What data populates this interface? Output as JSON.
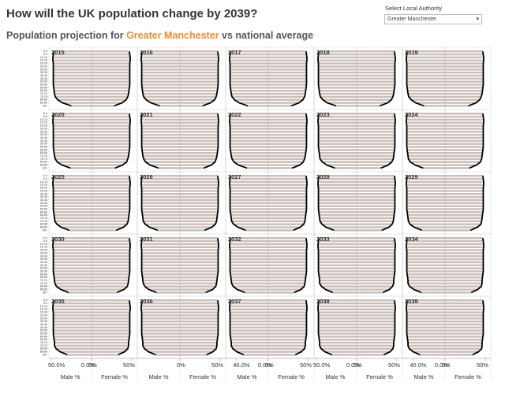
{
  "title": "How will the UK population change by 2039?",
  "subtitle": {
    "prefix": "Population projection for",
    "highlight": "Greater Manchester",
    "suffix": "vs national average"
  },
  "filter": {
    "label": "Select Local Authority",
    "value": "Greater Manchester"
  },
  "chart_data": {
    "type": "pyramid-grid",
    "bar_color": "#cbbfb9",
    "line_color": "#000000",
    "xlim": [
      0,
      50
    ],
    "age_groups": [
      "0-4",
      "5-9",
      "10-14",
      "15-19",
      "20-24",
      "25-29",
      "30-34",
      "35-39",
      "40-44",
      "45-49",
      "50-54",
      "55-59",
      "60-64",
      "65-69",
      "70-74",
      "75-79",
      "80-84",
      "85-89",
      "90+"
    ],
    "male_axis_title": "Male %",
    "female_axis_title": "Female %",
    "axes": [
      {
        "male_ticks": [
          {
            "value": 50,
            "label": "50.0%"
          },
          {
            "value": 0,
            "label": "0.0%"
          }
        ],
        "female_ticks": [
          {
            "value": 0,
            "label": "0%"
          },
          {
            "value": 50,
            "label": "50%"
          }
        ]
      },
      {
        "male_ticks": [],
        "female_ticks": [
          {
            "value": 0,
            "label": "0%"
          },
          {
            "value": 50,
            "label": "50%"
          }
        ]
      },
      {
        "male_ticks": [
          {
            "value": 40,
            "label": "40.0%"
          },
          {
            "value": 0,
            "label": "0.0%"
          }
        ],
        "female_ticks": [
          {
            "value": 0,
            "label": "0%"
          },
          {
            "value": 50,
            "label": "50%"
          }
        ]
      },
      {
        "male_ticks": [
          {
            "value": 50,
            "label": "50.0%"
          },
          {
            "value": 0,
            "label": "0.0%"
          }
        ],
        "female_ticks": [
          {
            "value": 0,
            "label": "0%"
          },
          {
            "value": 50,
            "label": "50%"
          }
        ]
      },
      {
        "male_ticks": [
          {
            "value": 40,
            "label": "40.0%"
          },
          {
            "value": 0,
            "label": "0.0%"
          }
        ],
        "female_ticks": [
          {
            "value": 0,
            "label": "0%"
          },
          {
            "value": 50,
            "label": "50%"
          }
        ]
      }
    ],
    "panels": [
      {
        "year": "2015",
        "male": [
          47,
          47.5,
          48,
          48,
          47.5,
          47.5,
          47.5,
          47.5,
          47.5,
          47.5,
          47.5,
          47.5,
          47,
          46.5,
          46,
          45,
          42,
          36,
          25
        ],
        "female": [
          47,
          47.5,
          48,
          48,
          47.5,
          47.5,
          47.5,
          47.5,
          47.5,
          47.5,
          47.5,
          47.5,
          47,
          46.5,
          46,
          45,
          43,
          38,
          28
        ]
      },
      {
        "year": "2016",
        "male": [
          47,
          47.5,
          48,
          48,
          47.5,
          47.5,
          47.5,
          47.5,
          47.5,
          47.5,
          47.5,
          47.5,
          47,
          46.5,
          46,
          45,
          42,
          36,
          25
        ],
        "female": [
          47,
          47.5,
          48,
          48,
          47.5,
          47.5,
          47.5,
          47.5,
          47.5,
          47.5,
          47.5,
          47.5,
          47,
          46.5,
          46,
          45,
          43,
          38,
          28
        ]
      },
      {
        "year": "2017",
        "male": [
          47,
          47.5,
          48,
          48,
          47.5,
          47.5,
          47.5,
          47.5,
          47.5,
          47.5,
          47.5,
          47.5,
          47,
          46.5,
          46,
          45,
          42,
          36,
          25.5
        ],
        "female": [
          47,
          47.5,
          48,
          48,
          47.5,
          47.5,
          47.5,
          47.5,
          47.5,
          47.5,
          47.5,
          47.5,
          47,
          46.5,
          46,
          45,
          43,
          38,
          28.5
        ]
      },
      {
        "year": "2018",
        "male": [
          47,
          47.5,
          48,
          48,
          47.5,
          47.5,
          47.5,
          47.5,
          47.5,
          47.5,
          47.5,
          47.5,
          47,
          46.5,
          46,
          45,
          42,
          36.5,
          25.5
        ],
        "female": [
          47,
          47.5,
          48,
          48,
          47.5,
          47.5,
          47.5,
          47.5,
          47.5,
          47.5,
          47.5,
          47.5,
          47,
          46.5,
          46,
          45,
          43,
          38.5,
          28.5
        ]
      },
      {
        "year": "2019",
        "male": [
          47,
          47.5,
          48,
          48,
          47.5,
          47.5,
          47.5,
          47.5,
          47.5,
          47.5,
          47.5,
          47.5,
          47,
          46.5,
          46,
          45,
          42,
          36.5,
          26
        ],
        "female": [
          47,
          47.5,
          48,
          48,
          47.5,
          47.5,
          47.5,
          47.5,
          47.5,
          47.5,
          47.5,
          47.5,
          47,
          46.5,
          46,
          45,
          43,
          38.5,
          29
        ]
      },
      {
        "year": "2020",
        "male": [
          47,
          47.5,
          48,
          48,
          47.5,
          47.5,
          47.5,
          47.5,
          47.5,
          47.5,
          47.5,
          47.5,
          47,
          46.5,
          46,
          45,
          42.5,
          36.5,
          26
        ],
        "female": [
          47,
          47.5,
          48,
          48,
          47.5,
          47.5,
          47.5,
          47.5,
          47.5,
          47.5,
          47.5,
          47.5,
          47,
          46.5,
          46,
          45,
          43.5,
          38.5,
          29
        ]
      },
      {
        "year": "2021",
        "male": [
          47,
          47.5,
          48,
          48,
          47.5,
          47.5,
          47.5,
          47.5,
          47.5,
          47.5,
          47.5,
          47.5,
          47,
          46.5,
          46,
          45,
          42.5,
          37,
          26.5
        ],
        "female": [
          47,
          47.5,
          48,
          48,
          47.5,
          47.5,
          47.5,
          47.5,
          47.5,
          47.5,
          47.5,
          47.5,
          47,
          46.5,
          46,
          45,
          43.5,
          39,
          29.5
        ]
      },
      {
        "year": "2022",
        "male": [
          47,
          47.5,
          48,
          48,
          47.5,
          47.5,
          47.5,
          47.5,
          47.5,
          47.5,
          47.5,
          47.5,
          47,
          46.5,
          46,
          45,
          42.5,
          37,
          26.5
        ],
        "female": [
          47,
          47.5,
          48,
          48,
          47.5,
          47.5,
          47.5,
          47.5,
          47.5,
          47.5,
          47.5,
          47.5,
          47,
          46.5,
          46,
          45,
          43.5,
          39,
          29.5
        ]
      },
      {
        "year": "2023",
        "male": [
          47,
          47.5,
          48,
          48,
          47.5,
          47.5,
          47.5,
          47.5,
          47.5,
          47.5,
          47.5,
          47.5,
          47,
          46.5,
          46,
          45.5,
          42.5,
          37,
          27
        ],
        "female": [
          47,
          47.5,
          48,
          48,
          47.5,
          47.5,
          47.5,
          47.5,
          47.5,
          47.5,
          47.5,
          47.5,
          47,
          46.5,
          46,
          45.5,
          43.5,
          39,
          30
        ]
      },
      {
        "year": "2024",
        "male": [
          47,
          47.5,
          48,
          48,
          47.5,
          47.5,
          47.5,
          47.5,
          47.5,
          47.5,
          47.5,
          47.5,
          47,
          46.5,
          46,
          45.5,
          43,
          37,
          27
        ],
        "female": [
          47,
          47.5,
          48,
          48,
          47.5,
          47.5,
          47.5,
          47.5,
          47.5,
          47.5,
          47.5,
          47.5,
          47,
          46.5,
          46,
          45.5,
          44,
          39,
          30
        ]
      },
      {
        "year": "2025",
        "male": [
          47,
          47.5,
          48,
          48,
          47.5,
          47.5,
          47.5,
          47.5,
          47.5,
          47.5,
          47.5,
          47.5,
          47,
          46.5,
          46,
          45.5,
          43,
          37.5,
          27.5
        ],
        "female": [
          47,
          47.5,
          48,
          48,
          47.5,
          47.5,
          47.5,
          47.5,
          47.5,
          47.5,
          47.5,
          47.5,
          47,
          46.5,
          46,
          45.5,
          44,
          39.5,
          30.5
        ]
      },
      {
        "year": "2026",
        "male": [
          47,
          47.5,
          48,
          48,
          47.5,
          47.5,
          47.5,
          47.5,
          47.5,
          47.5,
          47.5,
          47.5,
          47,
          46.5,
          46,
          45.5,
          43,
          37.5,
          27.5
        ],
        "female": [
          47,
          47.5,
          48,
          48,
          47.5,
          47.5,
          47.5,
          47.5,
          47.5,
          47.5,
          47.5,
          47.5,
          47,
          46.5,
          46,
          45.5,
          44,
          39.5,
          30.5
        ]
      },
      {
        "year": "2027",
        "male": [
          47,
          47.5,
          48,
          48,
          47.5,
          47.5,
          47.5,
          47.5,
          47.5,
          47.5,
          47.5,
          47.5,
          47,
          46.5,
          46,
          45.5,
          43,
          37.5,
          28
        ],
        "female": [
          47,
          47.5,
          48,
          48,
          47.5,
          47.5,
          47.5,
          47.5,
          47.5,
          47.5,
          47.5,
          47.5,
          47,
          46.5,
          46,
          45.5,
          44,
          39.5,
          31
        ]
      },
      {
        "year": "2028",
        "male": [
          47,
          47.5,
          48,
          48,
          47.5,
          47.5,
          47.5,
          47.5,
          47.5,
          47.5,
          47.5,
          47.5,
          47,
          46.5,
          46,
          45.5,
          43,
          38,
          28
        ],
        "female": [
          47,
          47.5,
          48,
          48,
          47.5,
          47.5,
          47.5,
          47.5,
          47.5,
          47.5,
          47.5,
          47.5,
          47,
          46.5,
          46,
          45.5,
          44,
          40,
          31
        ]
      },
      {
        "year": "2029",
        "male": [
          47,
          47.5,
          48,
          48,
          47.5,
          47.5,
          47.5,
          47.5,
          47.5,
          47.5,
          47.5,
          47.5,
          47,
          46.5,
          46,
          45.5,
          43.5,
          38,
          28.5
        ],
        "female": [
          47,
          47.5,
          48,
          48,
          47.5,
          47.5,
          47.5,
          47.5,
          47.5,
          47.5,
          47.5,
          47.5,
          47,
          46.5,
          46,
          45.5,
          44.5,
          40,
          31.5
        ]
      },
      {
        "year": "2030",
        "male": [
          47,
          47.5,
          48,
          48,
          47.5,
          47.5,
          47.5,
          47.5,
          47.5,
          47.5,
          47.5,
          47.5,
          47,
          46.5,
          46,
          45.5,
          43.5,
          38,
          28.5
        ],
        "female": [
          47,
          47.5,
          48,
          48,
          47.5,
          47.5,
          47.5,
          47.5,
          47.5,
          47.5,
          47.5,
          47.5,
          47,
          46.5,
          46,
          45.5,
          44.5,
          40,
          31.5
        ]
      },
      {
        "year": "2031",
        "male": [
          47,
          47.5,
          48,
          48,
          47.5,
          47.5,
          47.5,
          47.5,
          47.5,
          47.5,
          47.5,
          47.5,
          47,
          46.5,
          46,
          45.5,
          43.5,
          38.5,
          29
        ],
        "female": [
          47,
          47.5,
          48,
          48,
          47.5,
          47.5,
          47.5,
          47.5,
          47.5,
          47.5,
          47.5,
          47.5,
          47,
          46.5,
          46,
          45.5,
          44.5,
          40.5,
          32
        ]
      },
      {
        "year": "2032",
        "male": [
          47,
          47.5,
          48,
          48,
          47.5,
          47.5,
          47.5,
          47.5,
          47.5,
          47.5,
          47.5,
          47.5,
          47,
          46.5,
          46,
          45.5,
          43.5,
          38.5,
          29
        ],
        "female": [
          47,
          47.5,
          48,
          48,
          47.5,
          47.5,
          47.5,
          47.5,
          47.5,
          47.5,
          47.5,
          47.5,
          47,
          46.5,
          46,
          45.5,
          44.5,
          40.5,
          32
        ]
      },
      {
        "year": "2033",
        "male": [
          47,
          47.5,
          48,
          48,
          47.5,
          47.5,
          47.5,
          47.5,
          47.5,
          47.5,
          47.5,
          47.5,
          47,
          46.5,
          46,
          46,
          43.5,
          38.5,
          29.5
        ],
        "female": [
          47,
          47.5,
          48,
          48,
          47.5,
          47.5,
          47.5,
          47.5,
          47.5,
          47.5,
          47.5,
          47.5,
          47,
          46.5,
          46,
          46,
          44.5,
          40.5,
          32.5
        ]
      },
      {
        "year": "2034",
        "male": [
          47,
          47.5,
          48,
          48,
          47.5,
          47.5,
          47.5,
          47.5,
          47.5,
          47.5,
          47.5,
          47.5,
          47,
          46.5,
          46,
          46,
          44,
          38.5,
          29.5
        ],
        "female": [
          47,
          47.5,
          48,
          48,
          47.5,
          47.5,
          47.5,
          47.5,
          47.5,
          47.5,
          47.5,
          47.5,
          47,
          46.5,
          46,
          46,
          45,
          40.5,
          32.5
        ]
      },
      {
        "year": "2035",
        "male": [
          47,
          47.5,
          48,
          48,
          47.5,
          47.5,
          47.5,
          47.5,
          47.5,
          47.5,
          47.5,
          47.5,
          47,
          46.5,
          46,
          46,
          44,
          39,
          30
        ],
        "female": [
          47,
          47.5,
          48,
          48,
          47.5,
          47.5,
          47.5,
          47.5,
          47.5,
          47.5,
          47.5,
          47.5,
          47,
          46.5,
          46,
          46,
          45,
          41,
          33
        ]
      },
      {
        "year": "2036",
        "male": [
          47,
          47.5,
          48,
          48,
          47.5,
          47.5,
          47.5,
          47.5,
          47.5,
          47.5,
          47.5,
          47.5,
          47,
          46.5,
          46,
          46,
          44,
          39,
          30
        ],
        "female": [
          47,
          47.5,
          48,
          48,
          47.5,
          47.5,
          47.5,
          47.5,
          47.5,
          47.5,
          47.5,
          47.5,
          47,
          46.5,
          46,
          46,
          45,
          41,
          33
        ]
      },
      {
        "year": "2037",
        "male": [
          47,
          47.5,
          48,
          48,
          47.5,
          47.5,
          47.5,
          47.5,
          47.5,
          47.5,
          47.5,
          47.5,
          47,
          46.5,
          46,
          46,
          44,
          39,
          30.5
        ],
        "female": [
          47,
          47.5,
          48,
          48,
          47.5,
          47.5,
          47.5,
          47.5,
          47.5,
          47.5,
          47.5,
          47.5,
          47,
          46.5,
          46,
          46,
          45,
          41,
          33.5
        ]
      },
      {
        "year": "2038",
        "male": [
          47,
          47.5,
          48,
          48,
          47.5,
          47.5,
          47.5,
          47.5,
          47.5,
          47.5,
          47.5,
          47.5,
          47,
          46.5,
          46,
          46,
          44,
          39.5,
          30.5
        ],
        "female": [
          47,
          47.5,
          48,
          48,
          47.5,
          47.5,
          47.5,
          47.5,
          47.5,
          47.5,
          47.5,
          47.5,
          47,
          46.5,
          46,
          46,
          45,
          41.5,
          33.5
        ]
      },
      {
        "year": "2039",
        "male": [
          47,
          47.5,
          48,
          48,
          47.5,
          47.5,
          47.5,
          47.5,
          47.5,
          47.5,
          47.5,
          47.5,
          47,
          46.5,
          46,
          46,
          44.5,
          39.5,
          31
        ],
        "female": [
          47,
          47.5,
          48,
          48,
          47.5,
          47.5,
          47.5,
          47.5,
          47.5,
          47.5,
          47.5,
          47.5,
          47,
          46.5,
          46,
          46,
          45.5,
          41.5,
          34
        ]
      }
    ]
  }
}
